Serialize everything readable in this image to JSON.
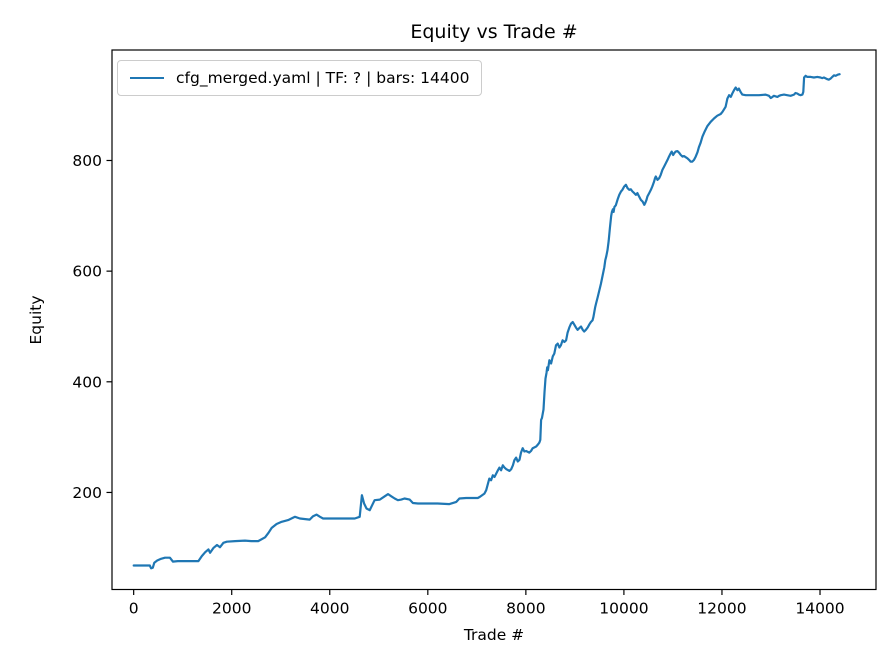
{
  "figure": {
    "background": "#ffffff"
  },
  "chart_data": {
    "type": "line",
    "title": "Equity vs Trade #",
    "xlabel": "Trade #",
    "ylabel": "Equity",
    "grid": false,
    "legend": {
      "position": "upper left",
      "entries": [
        {
          "label": "cfg_merged.yaml | TF: ? | bars: 14400",
          "color": "#1f77b4"
        }
      ]
    },
    "line_color": "#1f77b4",
    "axis_color": "#000000",
    "legend_border_color": "#cccccc",
    "x_ticks": [
      0,
      2000,
      4000,
      6000,
      8000,
      10000,
      12000,
      14000
    ],
    "y_ticks": [
      200,
      400,
      600,
      800
    ],
    "xlim": [
      -442,
      15142
    ],
    "ylim": [
      24.6,
      999.7
    ],
    "series": [
      {
        "name": "cfg_merged.yaml | TF: ? | bars: 14400",
        "points": [
          [
            0,
            68
          ],
          [
            150,
            68
          ],
          [
            330,
            68
          ],
          [
            355,
            63
          ],
          [
            390,
            64
          ],
          [
            420,
            73
          ],
          [
            480,
            77
          ],
          [
            560,
            80
          ],
          [
            640,
            82
          ],
          [
            740,
            82
          ],
          [
            800,
            75
          ],
          [
            900,
            76
          ],
          [
            1000,
            76
          ],
          [
            1150,
            76
          ],
          [
            1320,
            76
          ],
          [
            1390,
            85
          ],
          [
            1460,
            92
          ],
          [
            1525,
            97
          ],
          [
            1560,
            91
          ],
          [
            1630,
            100
          ],
          [
            1700,
            105
          ],
          [
            1760,
            101
          ],
          [
            1830,
            109
          ],
          [
            1900,
            111
          ],
          [
            2070,
            112
          ],
          [
            2270,
            113
          ],
          [
            2400,
            112
          ],
          [
            2540,
            112
          ],
          [
            2680,
            119
          ],
          [
            2750,
            127
          ],
          [
            2815,
            136
          ],
          [
            2915,
            143
          ],
          [
            3020,
            147
          ],
          [
            3150,
            150
          ],
          [
            3290,
            156
          ],
          [
            3390,
            153
          ],
          [
            3590,
            151
          ],
          [
            3660,
            157
          ],
          [
            3730,
            160
          ],
          [
            3800,
            156
          ],
          [
            3865,
            153
          ],
          [
            4000,
            153
          ],
          [
            4140,
            153
          ],
          [
            4300,
            153
          ],
          [
            4510,
            153
          ],
          [
            4610,
            156
          ],
          [
            4655,
            195
          ],
          [
            4700,
            180
          ],
          [
            4750,
            171
          ],
          [
            4815,
            168
          ],
          [
            4850,
            174
          ],
          [
            4915,
            186
          ],
          [
            5020,
            187
          ],
          [
            5120,
            193
          ],
          [
            5190,
            197
          ],
          [
            5255,
            193
          ],
          [
            5325,
            189
          ],
          [
            5390,
            186
          ],
          [
            5460,
            187
          ],
          [
            5525,
            189
          ],
          [
            5630,
            187
          ],
          [
            5695,
            181
          ],
          [
            5800,
            180
          ],
          [
            6000,
            180
          ],
          [
            6200,
            180
          ],
          [
            6440,
            179
          ],
          [
            6580,
            183
          ],
          [
            6645,
            189
          ],
          [
            6780,
            190
          ],
          [
            7020,
            190
          ],
          [
            7060,
            192
          ],
          [
            7155,
            198
          ],
          [
            7190,
            204
          ],
          [
            7255,
            225
          ],
          [
            7290,
            222
          ],
          [
            7325,
            231
          ],
          [
            7360,
            228
          ],
          [
            7430,
            240
          ],
          [
            7460,
            245
          ],
          [
            7495,
            240
          ],
          [
            7530,
            249
          ],
          [
            7565,
            245
          ],
          [
            7600,
            242
          ],
          [
            7665,
            239
          ],
          [
            7700,
            242
          ],
          [
            7735,
            249
          ],
          [
            7765,
            258
          ],
          [
            7800,
            263
          ],
          [
            7835,
            256
          ],
          [
            7870,
            259
          ],
          [
            7900,
            272
          ],
          [
            7935,
            280
          ],
          [
            7970,
            274
          ],
          [
            8005,
            275
          ],
          [
            8070,
            272
          ],
          [
            8105,
            275
          ],
          [
            8140,
            280
          ],
          [
            8210,
            283
          ],
          [
            8240,
            286
          ],
          [
            8275,
            290
          ],
          [
            8295,
            295
          ],
          [
            8310,
            331
          ],
          [
            8330,
            335
          ],
          [
            8345,
            343
          ],
          [
            8360,
            350
          ],
          [
            8380,
            381
          ],
          [
            8400,
            406
          ],
          [
            8420,
            416
          ],
          [
            8435,
            426
          ],
          [
            8450,
            421
          ],
          [
            8480,
            439
          ],
          [
            8515,
            433
          ],
          [
            8550,
            446
          ],
          [
            8580,
            451
          ],
          [
            8615,
            466
          ],
          [
            8650,
            469
          ],
          [
            8685,
            462
          ],
          [
            8715,
            466
          ],
          [
            8750,
            475
          ],
          [
            8785,
            472
          ],
          [
            8820,
            475
          ],
          [
            8852,
            489
          ],
          [
            8886,
            498
          ],
          [
            8920,
            505
          ],
          [
            8955,
            508
          ],
          [
            8990,
            503
          ],
          [
            9022,
            498
          ],
          [
            9056,
            494
          ],
          [
            9090,
            497
          ],
          [
            9125,
            500
          ],
          [
            9160,
            494
          ],
          [
            9190,
            491
          ],
          [
            9225,
            494
          ],
          [
            9260,
            498
          ],
          [
            9295,
            504
          ],
          [
            9327,
            508
          ],
          [
            9360,
            511
          ],
          [
            9377,
            517
          ],
          [
            9395,
            526
          ],
          [
            9415,
            535
          ],
          [
            9430,
            541
          ],
          [
            9465,
            553
          ],
          [
            9497,
            565
          ],
          [
            9530,
            577
          ],
          [
            9565,
            592
          ],
          [
            9600,
            607
          ],
          [
            9620,
            620
          ],
          [
            9640,
            627
          ],
          [
            9665,
            638
          ],
          [
            9690,
            655
          ],
          [
            9715,
            678
          ],
          [
            9740,
            700
          ],
          [
            9755,
            707
          ],
          [
            9775,
            712
          ],
          [
            9790,
            707
          ],
          [
            9805,
            716
          ],
          [
            9835,
            719
          ],
          [
            9870,
            729
          ],
          [
            9905,
            738
          ],
          [
            9940,
            744
          ],
          [
            9970,
            747
          ],
          [
            10005,
            753
          ],
          [
            10040,
            756
          ],
          [
            10075,
            750
          ],
          [
            10110,
            747
          ],
          [
            10140,
            748
          ],
          [
            10175,
            744
          ],
          [
            10210,
            741
          ],
          [
            10245,
            738
          ],
          [
            10275,
            741
          ],
          [
            10310,
            735
          ],
          [
            10345,
            729
          ],
          [
            10380,
            726
          ],
          [
            10415,
            720
          ],
          [
            10435,
            723
          ],
          [
            10460,
            729
          ],
          [
            10480,
            735
          ],
          [
            10515,
            741
          ],
          [
            10550,
            747
          ],
          [
            10580,
            753
          ],
          [
            10615,
            762
          ],
          [
            10635,
            768
          ],
          [
            10650,
            771
          ],
          [
            10685,
            765
          ],
          [
            10720,
            768
          ],
          [
            10750,
            774
          ],
          [
            10785,
            783
          ],
          [
            10820,
            789
          ],
          [
            10855,
            795
          ],
          [
            10890,
            801
          ],
          [
            10920,
            807
          ],
          [
            10955,
            813
          ],
          [
            10975,
            816
          ],
          [
            11005,
            810
          ],
          [
            11025,
            813
          ],
          [
            11055,
            816
          ],
          [
            11090,
            817
          ],
          [
            11125,
            814
          ],
          [
            11160,
            810
          ],
          [
            11195,
            807
          ],
          [
            11225,
            808
          ],
          [
            11260,
            806
          ],
          [
            11295,
            804
          ],
          [
            11330,
            801
          ],
          [
            11360,
            798
          ],
          [
            11395,
            798
          ],
          [
            11430,
            801
          ],
          [
            11465,
            807
          ],
          [
            11500,
            815
          ],
          [
            11530,
            824
          ],
          [
            11565,
            832
          ],
          [
            11600,
            843
          ],
          [
            11650,
            853
          ],
          [
            11700,
            862
          ],
          [
            11770,
            870
          ],
          [
            11840,
            876
          ],
          [
            11905,
            881
          ],
          [
            11975,
            884
          ],
          [
            12010,
            888
          ],
          [
            12075,
            897
          ],
          [
            12110,
            912
          ],
          [
            12145,
            918
          ],
          [
            12180,
            915
          ],
          [
            12210,
            921
          ],
          [
            12245,
            927
          ],
          [
            12280,
            932
          ],
          [
            12315,
            927
          ],
          [
            12345,
            930
          ],
          [
            12380,
            924
          ],
          [
            12415,
            919
          ],
          [
            12485,
            918
          ],
          [
            12620,
            918
          ],
          [
            12755,
            918
          ],
          [
            12890,
            919
          ],
          [
            12960,
            917
          ],
          [
            12995,
            913
          ],
          [
            13030,
            915
          ],
          [
            13060,
            917
          ],
          [
            13130,
            915
          ],
          [
            13165,
            917
          ],
          [
            13200,
            918
          ],
          [
            13265,
            919
          ],
          [
            13330,
            918
          ],
          [
            13400,
            917
          ],
          [
            13470,
            919
          ],
          [
            13500,
            922
          ],
          [
            13535,
            921
          ],
          [
            13570,
            919
          ],
          [
            13605,
            918
          ],
          [
            13640,
            919
          ],
          [
            13660,
            924
          ],
          [
            13675,
            950
          ],
          [
            13705,
            953
          ],
          [
            13740,
            951
          ],
          [
            13810,
            951
          ],
          [
            13875,
            950
          ],
          [
            13945,
            951
          ],
          [
            14010,
            950
          ],
          [
            14045,
            949
          ],
          [
            14080,
            950
          ],
          [
            14150,
            947
          ],
          [
            14180,
            946
          ],
          [
            14215,
            948
          ],
          [
            14250,
            951
          ],
          [
            14285,
            954
          ],
          [
            14320,
            953
          ],
          [
            14360,
            955
          ],
          [
            14400,
            956
          ]
        ]
      }
    ]
  }
}
